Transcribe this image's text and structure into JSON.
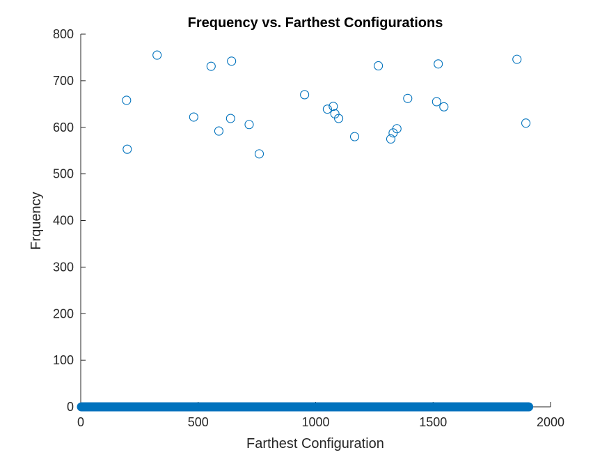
{
  "chart_data": {
    "type": "scatter",
    "title": "Frequency vs. Farthest Configurations",
    "xlabel": "Farthest Configuration",
    "ylabel": "Frquency",
    "xlim": [
      0,
      2000
    ],
    "ylim": [
      0,
      800
    ],
    "xticks": [
      0,
      500,
      1000,
      1500,
      2000
    ],
    "yticks": [
      0,
      100,
      200,
      300,
      400,
      500,
      600,
      700,
      800
    ],
    "grid": false,
    "marker": "open-circle",
    "color": "#0072BD",
    "points": [
      {
        "x": 195,
        "y": 658
      },
      {
        "x": 198,
        "y": 553
      },
      {
        "x": 325,
        "y": 755
      },
      {
        "x": 481,
        "y": 622
      },
      {
        "x": 555,
        "y": 731
      },
      {
        "x": 588,
        "y": 592
      },
      {
        "x": 638,
        "y": 619
      },
      {
        "x": 642,
        "y": 742
      },
      {
        "x": 717,
        "y": 606
      },
      {
        "x": 760,
        "y": 543
      },
      {
        "x": 953,
        "y": 670
      },
      {
        "x": 1050,
        "y": 639
      },
      {
        "x": 1075,
        "y": 645
      },
      {
        "x": 1082,
        "y": 629
      },
      {
        "x": 1098,
        "y": 619
      },
      {
        "x": 1166,
        "y": 580
      },
      {
        "x": 1267,
        "y": 732
      },
      {
        "x": 1320,
        "y": 575
      },
      {
        "x": 1330,
        "y": 588
      },
      {
        "x": 1346,
        "y": 597
      },
      {
        "x": 1392,
        "y": 662
      },
      {
        "x": 1515,
        "y": 655
      },
      {
        "x": 1522,
        "y": 736
      },
      {
        "x": 1546,
        "y": 644
      },
      {
        "x": 1857,
        "y": 746
      },
      {
        "x": 1895,
        "y": 609
      }
    ],
    "dense_baseline": {
      "y": 0,
      "x_range": [
        0,
        1910
      ]
    }
  }
}
